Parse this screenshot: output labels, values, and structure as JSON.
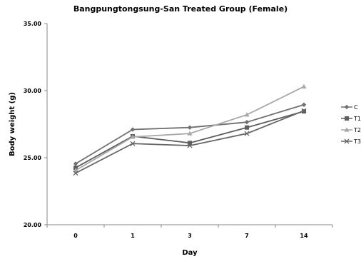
{
  "chart_data": {
    "type": "line",
    "title": "Bangpungtongsung-San Treated Group (Female)",
    "xlabel": "Day",
    "ylabel": "Body weight (g)",
    "categories": [
      "0",
      "1",
      "3",
      "7",
      "14"
    ],
    "ylim": [
      20.0,
      35.0
    ],
    "yticks": [
      "20.00",
      "25.00",
      "30.00",
      "35.00"
    ],
    "grid": false,
    "legend_position": "right",
    "series": [
      {
        "name": "C",
        "values": [
          24.55,
          27.1,
          27.25,
          27.65,
          28.95
        ],
        "color": "#707070",
        "marker": "diamond"
      },
      {
        "name": "T1",
        "values": [
          24.25,
          26.6,
          26.1,
          27.25,
          28.45
        ],
        "color": "#5e5e5e",
        "marker": "square"
      },
      {
        "name": "T2",
        "values": [
          24.05,
          26.55,
          26.8,
          28.2,
          30.3
        ],
        "color": "#a8a8a8",
        "marker": "triangle"
      },
      {
        "name": "T3",
        "values": [
          23.85,
          26.05,
          25.9,
          26.8,
          28.5
        ],
        "color": "#666666",
        "marker": "x"
      }
    ]
  }
}
